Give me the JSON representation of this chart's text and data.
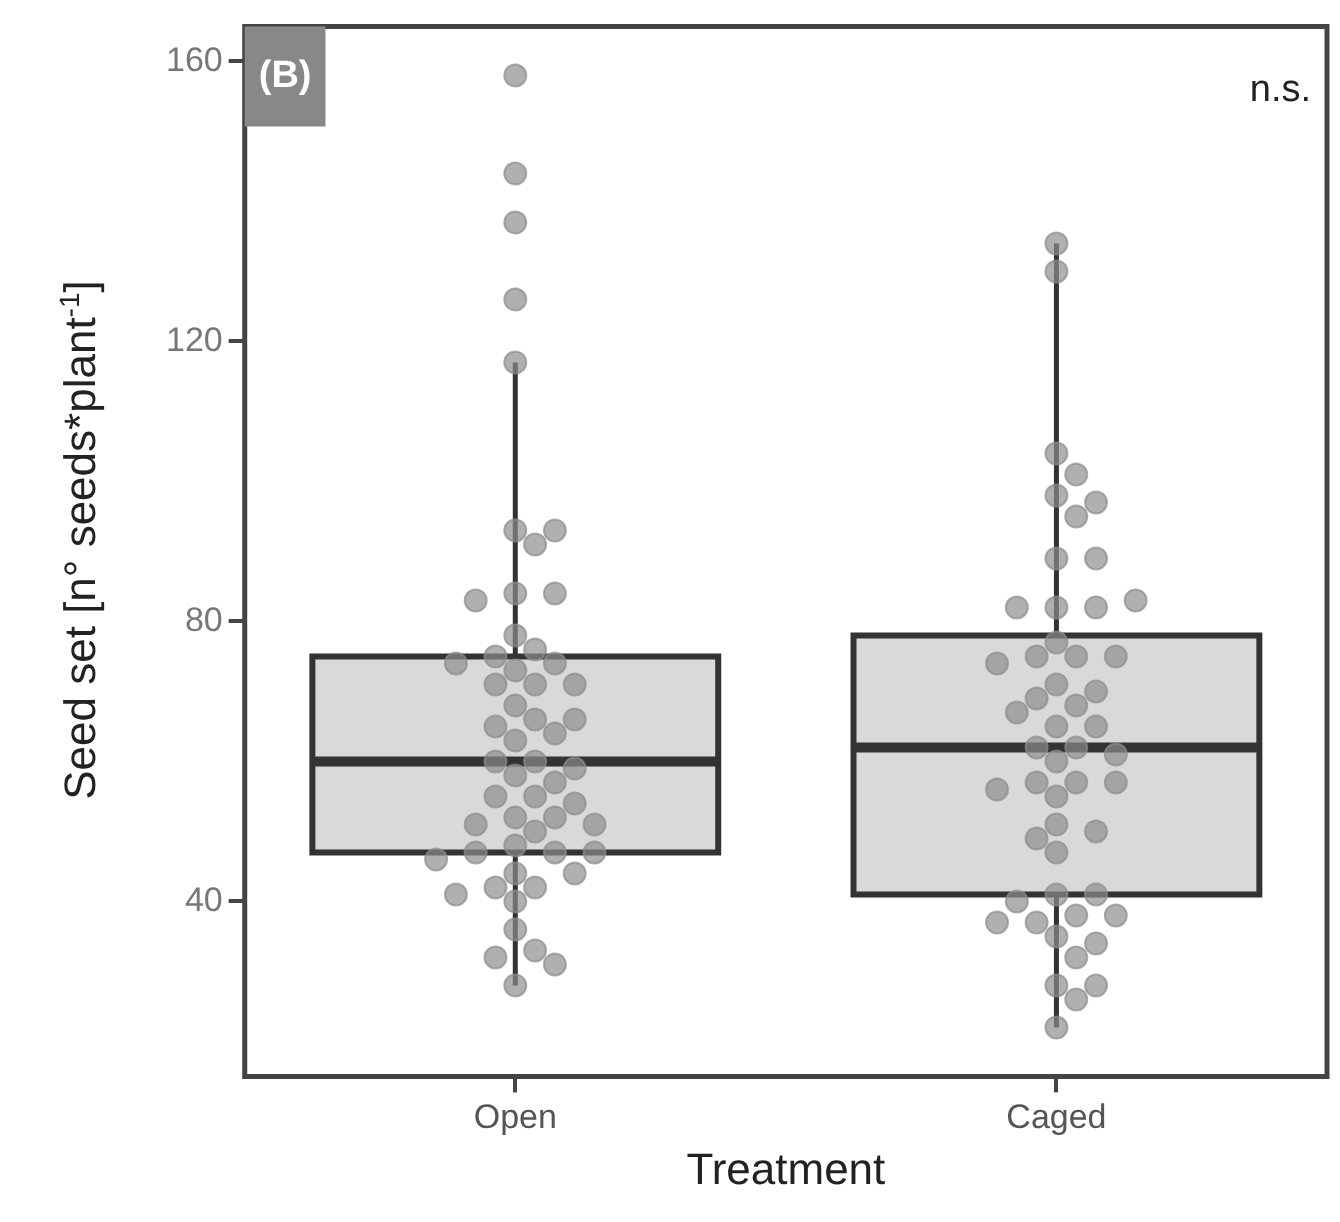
{
  "chart_data": {
    "type": "box",
    "xlabel": "Treatment",
    "ylabel": "Seed set [n° seeds*plant$^{-1}$]",
    "categories": [
      "Open",
      "Caged"
    ],
    "ylim": [
      15,
      165
    ],
    "yticks": [
      40,
      80,
      120,
      160
    ],
    "annotations": [
      "(B)",
      "n.s."
    ],
    "series": [
      {
        "type": "box",
        "color": "#d9d9d9",
        "boxes": [
          {
            "low": 28,
            "q1": 47,
            "median": 60,
            "q3": 75,
            "high": 117
          },
          {
            "low": 22,
            "q1": 41,
            "median": 62,
            "q3": 78,
            "high": 134
          }
        ]
      },
      {
        "type": "scatter",
        "color": "#8c8c8c",
        "x": [
          "Open",
          "Open",
          "Open",
          "Open",
          "Open",
          "Open",
          "Open",
          "Open",
          "Open",
          "Open",
          "Open",
          "Open",
          "Open",
          "Open",
          "Open",
          "Open",
          "Open",
          "Open",
          "Open",
          "Open",
          "Open",
          "Open",
          "Open",
          "Open",
          "Open",
          "Open",
          "Open",
          "Open",
          "Open",
          "Open",
          "Open",
          "Open",
          "Open",
          "Open",
          "Open",
          "Open",
          "Open",
          "Open",
          "Open",
          "Open",
          "Open",
          "Open",
          "Open",
          "Open",
          "Open",
          "Open",
          "Open",
          "Open",
          "Open",
          "Open",
          "Open",
          "Open",
          "Open",
          "Open",
          "Open",
          "Caged",
          "Caged",
          "Caged",
          "Caged",
          "Caged",
          "Caged",
          "Caged",
          "Caged",
          "Caged",
          "Caged",
          "Caged",
          "Caged",
          "Caged",
          "Caged",
          "Caged",
          "Caged",
          "Caged",
          "Caged",
          "Caged",
          "Caged",
          "Caged",
          "Caged",
          "Caged",
          "Caged",
          "Caged",
          "Caged",
          "Caged",
          "Caged",
          "Caged",
          "Caged",
          "Caged",
          "Caged",
          "Caged",
          "Caged",
          "Caged",
          "Caged",
          "Caged",
          "Caged",
          "Caged",
          "Caged",
          "Caged",
          "Caged",
          "Caged",
          "Caged",
          "Caged",
          "Caged",
          "Caged",
          "Caged",
          "Caged",
          "Caged",
          "Caged",
          "Caged"
        ],
        "values": [
          158,
          144,
          137,
          126,
          117,
          93,
          93,
          91,
          84,
          84,
          83,
          78,
          76,
          75,
          74,
          74,
          73,
          71,
          71,
          71,
          68,
          66,
          65,
          66,
          63,
          64,
          60,
          60,
          59,
          58,
          57,
          55,
          55,
          54,
          52,
          52,
          51,
          51,
          50,
          48,
          47,
          47,
          47,
          46,
          44,
          44,
          42,
          42,
          41,
          40,
          36,
          33,
          32,
          31,
          28,
          134,
          130,
          104,
          101,
          98,
          95,
          97,
          89,
          89,
          82,
          82,
          82,
          83,
          77,
          75,
          75,
          75,
          74,
          71,
          70,
          69,
          68,
          67,
          65,
          65,
          62,
          62,
          61,
          60,
          57,
          57,
          57,
          56,
          55,
          51,
          50,
          49,
          47,
          41,
          41,
          40,
          38,
          37,
          38,
          37,
          35,
          34,
          32,
          28,
          28,
          26,
          22
        ]
      }
    ]
  }
}
